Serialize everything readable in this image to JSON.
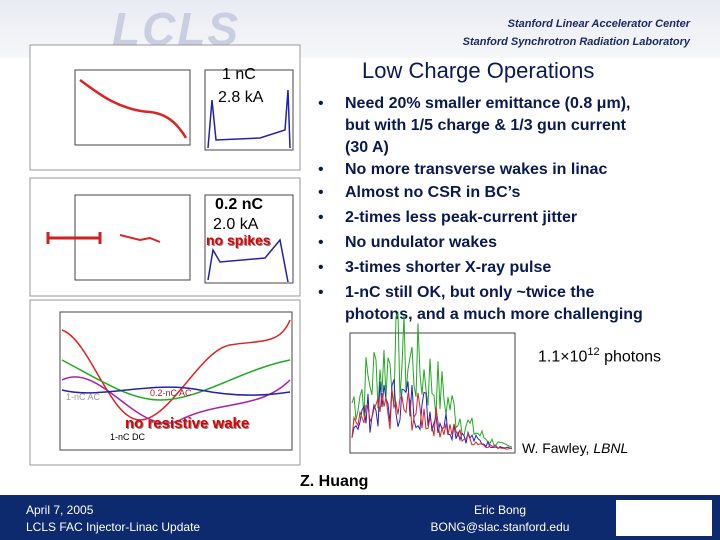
{
  "header": {
    "logo": "LCLS",
    "lab1": "Stanford Linear Accelerator Center",
    "lab2": "Stanford Synchrotron Radiation Laboratory"
  },
  "title": "Low Charge Operations",
  "bullets": [
    "Need 20% smaller emittance (0.8 μm), but with 1/5 charge & 1/3 gun current (30 A)",
    "No more transverse wakes in linac",
    "Almost no CSR in BC’s",
    "2-times less peak-current jitter",
    "No undulator wakes",
    "3-times shorter X-ray pulse",
    "1-nC still OK, but only ~twice the photons, and a much more challenging"
  ],
  "plots": {
    "top": {
      "charge": "1 nC",
      "current": "2.8 kA"
    },
    "middle": {
      "charge": "0.2 nC",
      "current": "2.0 kA",
      "note": "no spikes"
    },
    "bottom": {
      "note": "no resistive wake",
      "labels": [
        "1-nC AC",
        "0.2-nC AC",
        "1-nC DC"
      ]
    },
    "fel": {
      "photons_base": "1.1×10",
      "photons_exp": "12",
      "photons_unit": "photons",
      "credit_name": "W. Fawley, ",
      "credit_lab": "LBNL"
    }
  },
  "author": "Z. Huang",
  "footer": {
    "date": "April 7, 2005",
    "event": "LCLS FAC Injector-Linac Update",
    "name": "Eric Bong",
    "email": "BONG@slac.stanford.edu"
  }
}
